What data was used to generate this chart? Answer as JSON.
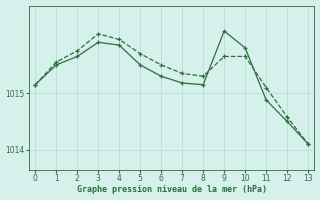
{
  "title": "Graphe pression niveau de la mer (hPa)",
  "background_color": "#d6f0eb",
  "grid_color": "#b8ddd8",
  "line_color": "#2d6e3e",
  "x_line1": [
    0,
    1,
    2,
    3,
    4,
    5,
    6,
    7,
    8,
    9,
    10,
    11,
    12,
    13
  ],
  "y_line1": [
    1015.15,
    1015.55,
    1015.75,
    1016.05,
    1015.95,
    1015.7,
    1015.5,
    1015.35,
    1015.3,
    1015.65,
    1015.65,
    1015.1,
    1014.58,
    1014.1
  ],
  "x_line2": [
    0,
    1,
    2,
    3,
    4,
    5,
    6,
    7,
    8,
    9,
    10,
    11,
    12,
    13
  ],
  "y_line2": [
    1015.15,
    1015.5,
    1015.65,
    1015.9,
    1015.85,
    1015.5,
    1015.3,
    1015.18,
    1015.15,
    1016.1,
    1015.8,
    1014.88,
    1014.5,
    1014.1
  ],
  "xlim": [
    -0.3,
    13.3
  ],
  "ylim": [
    1013.65,
    1016.55
  ],
  "yticks": [
    1014,
    1015
  ],
  "xticks": [
    0,
    1,
    2,
    3,
    4,
    5,
    6,
    7,
    8,
    9,
    10,
    11,
    12,
    13
  ],
  "title_fontsize": 6.0,
  "tick_fontsize": 5.5
}
